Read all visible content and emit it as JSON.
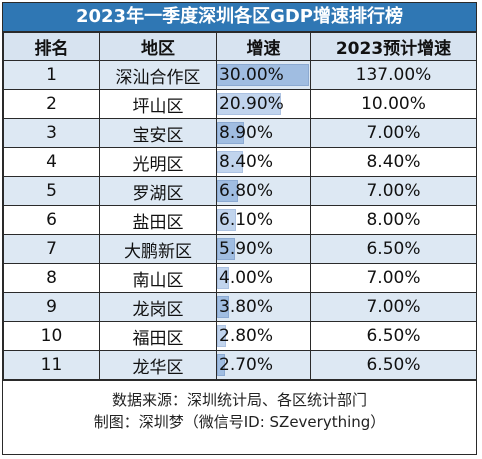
{
  "title": "2023年一季度深圳各区GDP增速排行榜",
  "headers": {
    "rank": "排名",
    "district": "地区",
    "growth": "增速",
    "projected": "2023预计增速"
  },
  "rows": [
    {
      "rank": "1",
      "district": "深汕合作区",
      "growth": "30.00%",
      "growth_value": 30.0,
      "projected": "137.00%"
    },
    {
      "rank": "2",
      "district": "坪山区",
      "growth": "20.90%",
      "growth_value": 20.9,
      "projected": "10.00%"
    },
    {
      "rank": "3",
      "district": "宝安区",
      "growth": "8.90%",
      "growth_value": 8.9,
      "projected": "7.00%"
    },
    {
      "rank": "4",
      "district": "光明区",
      "growth": "8.40%",
      "growth_value": 8.4,
      "projected": "8.40%"
    },
    {
      "rank": "5",
      "district": "罗湖区",
      "growth": "6.80%",
      "growth_value": 6.8,
      "projected": "7.00%"
    },
    {
      "rank": "6",
      "district": "盐田区",
      "growth": "6.10%",
      "growth_value": 6.1,
      "projected": "8.00%"
    },
    {
      "rank": "7",
      "district": "大鹏新区",
      "growth": "5.90%",
      "growth_value": 5.9,
      "projected": "6.50%"
    },
    {
      "rank": "8",
      "district": "南山区",
      "growth": "4.00%",
      "growth_value": 4.0,
      "projected": "7.00%"
    },
    {
      "rank": "9",
      "district": "龙岗区",
      "growth": "3.80%",
      "growth_value": 3.8,
      "projected": "7.00%"
    },
    {
      "rank": "10",
      "district": "福田区",
      "growth": "2.80%",
      "growth_value": 2.8,
      "projected": "6.50%"
    },
    {
      "rank": "11",
      "district": "龙华区",
      "growth": "2.70%",
      "growth_value": 2.7,
      "projected": "6.50%"
    }
  ],
  "footer": {
    "source": "数据来源：深圳统计局、各区统计部门",
    "credit": "制图：深圳梦（微信号ID: SZeverything）"
  },
  "colors": {
    "title_bg": "#2f77b4",
    "header_bg": "#d7e3f0",
    "odd_row_bg": "#dde8f3",
    "bar": "#6f9bd4"
  }
}
